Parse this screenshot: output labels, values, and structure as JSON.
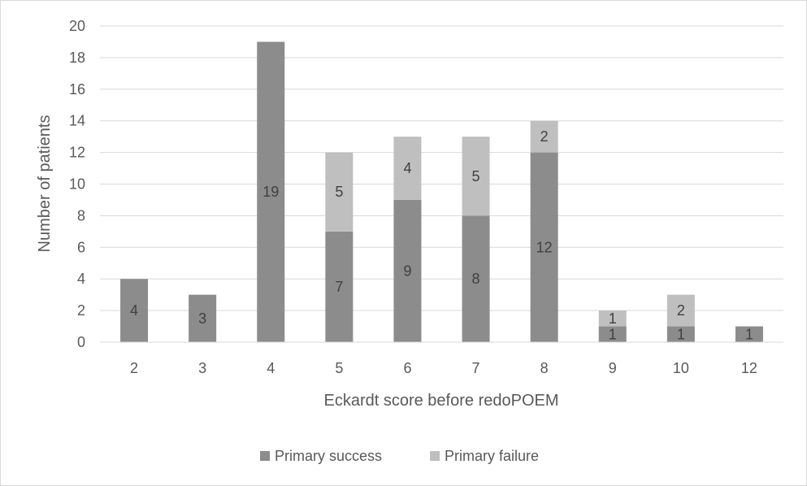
{
  "chart_data": {
    "type": "bar",
    "stacked": true,
    "categories": [
      "2",
      "3",
      "4",
      "5",
      "6",
      "7",
      "8",
      "9",
      "10",
      "12"
    ],
    "series": [
      {
        "name": "Primary success",
        "values": [
          4,
          3,
          19,
          7,
          9,
          8,
          12,
          1,
          1,
          1
        ],
        "color": "#8c8c8c"
      },
      {
        "name": "Primary failure",
        "values": [
          0,
          0,
          0,
          5,
          4,
          5,
          2,
          1,
          2,
          0
        ],
        "color": "#bfbfbf"
      }
    ],
    "data_labels": {
      "Primary success": [
        "4",
        "3",
        "19",
        "7",
        "9",
        "8",
        "12",
        "1",
        "1",
        "1"
      ],
      "Primary failure": [
        "",
        "",
        "",
        "5",
        "4",
        "5",
        "2",
        "1",
        "2",
        ""
      ]
    },
    "title": "",
    "xlabel": "Eckardt score before redoPOEM",
    "ylabel": "Number of patients",
    "ylim": [
      0,
      20
    ],
    "yticks": [
      "0",
      "2",
      "4",
      "6",
      "8",
      "10",
      "12",
      "14",
      "16",
      "18",
      "20"
    ],
    "grid": true,
    "legend_position": "bottom"
  }
}
